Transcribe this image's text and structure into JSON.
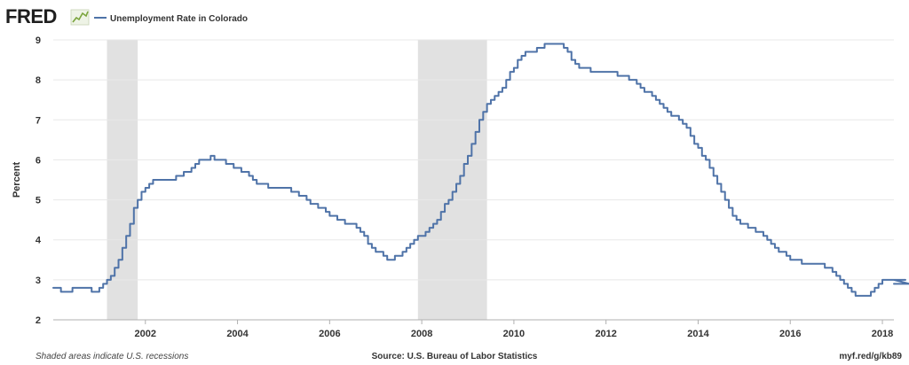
{
  "header": {
    "logo_text": "FRED",
    "logo_icon": "fred-chart-icon"
  },
  "colors": {
    "series": "#4f73a8",
    "recession": "#e1e1e1",
    "grid": "#e8e8e8",
    "axis": "#b0b0b0"
  },
  "footer": {
    "note": "Shaded areas indicate U.S. recessions",
    "source": "Source: U.S. Bureau of Labor Statistics",
    "link": "myf.red/g/kb89"
  },
  "chart_data": {
    "type": "line",
    "title": "",
    "xlabel": "",
    "ylabel": "Percent",
    "xlim": [
      "2000-01-01",
      "2018-04-01"
    ],
    "ylim": [
      2,
      9
    ],
    "yticks": [
      "2",
      "3",
      "4",
      "5",
      "6",
      "7",
      "8",
      "9"
    ],
    "xticks": [
      "2002",
      "2004",
      "2006",
      "2008",
      "2010",
      "2012",
      "2014",
      "2016",
      "2018"
    ],
    "grid": true,
    "legend_position": "top-left",
    "recessions": [
      [
        "2001-03-01",
        "2001-11-01"
      ],
      [
        "2007-12-01",
        "2009-06-01"
      ]
    ],
    "series": [
      {
        "name": "Unemployment Rate in Colorado",
        "frequency": "monthly",
        "start": "2000-01",
        "values": [
          2.8,
          2.8,
          2.7,
          2.7,
          2.7,
          2.8,
          2.8,
          2.8,
          2.8,
          2.8,
          2.7,
          2.7,
          2.8,
          2.9,
          3.0,
          3.1,
          3.3,
          3.5,
          3.8,
          4.1,
          4.4,
          4.8,
          5.0,
          5.2,
          5.3,
          5.4,
          5.5,
          5.5,
          5.5,
          5.5,
          5.5,
          5.5,
          5.6,
          5.6,
          5.7,
          5.7,
          5.8,
          5.9,
          6.0,
          6.0,
          6.0,
          6.1,
          6.0,
          6.0,
          6.0,
          5.9,
          5.9,
          5.8,
          5.8,
          5.7,
          5.7,
          5.6,
          5.5,
          5.4,
          5.4,
          5.4,
          5.3,
          5.3,
          5.3,
          5.3,
          5.3,
          5.3,
          5.2,
          5.2,
          5.1,
          5.1,
          5.0,
          4.9,
          4.9,
          4.8,
          4.8,
          4.7,
          4.6,
          4.6,
          4.5,
          4.5,
          4.4,
          4.4,
          4.4,
          4.3,
          4.2,
          4.1,
          3.9,
          3.8,
          3.7,
          3.7,
          3.6,
          3.5,
          3.5,
          3.6,
          3.6,
          3.7,
          3.8,
          3.9,
          4.0,
          4.1,
          4.1,
          4.2,
          4.3,
          4.4,
          4.5,
          4.7,
          4.9,
          5.0,
          5.2,
          5.4,
          5.6,
          5.9,
          6.1,
          6.4,
          6.7,
          7.0,
          7.2,
          7.4,
          7.5,
          7.6,
          7.7,
          7.8,
          8.0,
          8.2,
          8.3,
          8.5,
          8.6,
          8.7,
          8.7,
          8.7,
          8.8,
          8.8,
          8.9,
          8.9,
          8.9,
          8.9,
          8.9,
          8.8,
          8.7,
          8.5,
          8.4,
          8.3,
          8.3,
          8.3,
          8.2,
          8.2,
          8.2,
          8.2,
          8.2,
          8.2,
          8.2,
          8.1,
          8.1,
          8.1,
          8.0,
          8.0,
          7.9,
          7.8,
          7.7,
          7.7,
          7.6,
          7.5,
          7.4,
          7.3,
          7.2,
          7.1,
          7.1,
          7.0,
          6.9,
          6.8,
          6.6,
          6.4,
          6.3,
          6.1,
          6.0,
          5.8,
          5.6,
          5.4,
          5.2,
          5.0,
          4.8,
          4.6,
          4.5,
          4.4,
          4.4,
          4.3,
          4.3,
          4.2,
          4.2,
          4.1,
          4.0,
          3.9,
          3.8,
          3.7,
          3.7,
          3.6,
          3.5,
          3.5,
          3.5,
          3.4,
          3.4,
          3.4,
          3.4,
          3.4,
          3.4,
          3.3,
          3.3,
          3.2,
          3.1,
          3.0,
          2.9,
          2.8,
          2.7,
          2.6,
          2.6,
          2.6,
          2.6,
          2.7,
          2.8,
          2.9,
          3.0,
          3.0,
          3.0,
          3.0,
          3.0,
          3.0,
          3.0,
          2.9
        ]
      }
    ]
  }
}
